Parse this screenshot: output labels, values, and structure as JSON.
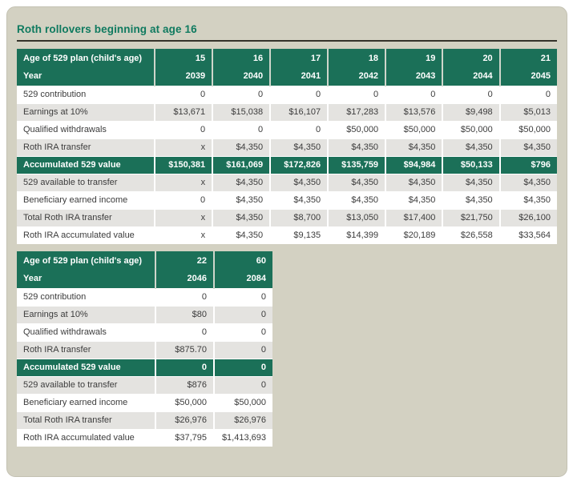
{
  "title": "Roth rollovers beginning at age 16",
  "colors": {
    "card_bg": "#d3d1c2",
    "accent_green": "#1b7058",
    "title_green": "#0f7a5f",
    "row_gray": "#e4e3e0",
    "rule_dark": "#34322a"
  },
  "tables": [
    {
      "id": "table-roth-ages-15-21",
      "header_rows": [
        {
          "label": "Age of 529 plan (child's age)",
          "values": [
            "15",
            "16",
            "17",
            "18",
            "19",
            "20",
            "21"
          ]
        },
        {
          "label": "Year",
          "values": [
            "2039",
            "2040",
            "2041",
            "2042",
            "2043",
            "2044",
            "2045"
          ]
        }
      ],
      "rows": [
        {
          "label": "529 contribution",
          "values": [
            "0",
            "0",
            "0",
            "0",
            "0",
            "0",
            "0"
          ],
          "variant": "white"
        },
        {
          "label": "Earnings at 10%",
          "values": [
            "$13,671",
            "$15,038",
            "$16,107",
            "$17,283",
            "$13,576",
            "$9,498",
            "$5,013"
          ],
          "variant": "gray"
        },
        {
          "label": "Qualified withdrawals",
          "values": [
            "0",
            "0",
            "0",
            "$50,000",
            "$50,000",
            "$50,000",
            "$50,000"
          ],
          "variant": "white"
        },
        {
          "label": "Roth IRA transfer",
          "values": [
            "x",
            "$4,350",
            "$4,350",
            "$4,350",
            "$4,350",
            "$4,350",
            "$4,350"
          ],
          "variant": "gray"
        },
        {
          "label": "Accumulated 529 value",
          "values": [
            "$150,381",
            "$161,069",
            "$172,826",
            "$135,759",
            "$94,984",
            "$50,133",
            "$796"
          ],
          "variant": "green"
        },
        {
          "label": "529 available to transfer",
          "values": [
            "x",
            "$4,350",
            "$4,350",
            "$4,350",
            "$4,350",
            "$4,350",
            "$4,350"
          ],
          "variant": "gray"
        },
        {
          "label": "Beneficiary earned income",
          "values": [
            "0",
            "$4,350",
            "$4,350",
            "$4,350",
            "$4,350",
            "$4,350",
            "$4,350"
          ],
          "variant": "white"
        },
        {
          "label": "Total Roth IRA transfer",
          "values": [
            "x",
            "$4,350",
            "$8,700",
            "$13,050",
            "$17,400",
            "$21,750",
            "$26,100"
          ],
          "variant": "gray"
        },
        {
          "label": "Roth IRA accumulated value",
          "values": [
            "x",
            "$4,350",
            "$9,135",
            "$14,399",
            "$20,189",
            "$26,558",
            "$33,564"
          ],
          "variant": "white"
        }
      ]
    },
    {
      "id": "table-roth-ages-22-60",
      "header_rows": [
        {
          "label": "Age of 529 plan (child's age)",
          "values": [
            "22",
            "60"
          ]
        },
        {
          "label": "Year",
          "values": [
            "2046",
            "2084"
          ]
        }
      ],
      "rows": [
        {
          "label": "529 contribution",
          "values": [
            "0",
            "0"
          ],
          "variant": "white"
        },
        {
          "label": "Earnings at 10%",
          "values": [
            "$80",
            "0"
          ],
          "variant": "gray"
        },
        {
          "label": "Qualified withdrawals",
          "values": [
            "0",
            "0"
          ],
          "variant": "white"
        },
        {
          "label": "Roth IRA transfer",
          "values": [
            "$875.70",
            "0"
          ],
          "variant": "gray"
        },
        {
          "label": "Accumulated 529 value",
          "values": [
            "0",
            "0"
          ],
          "variant": "green"
        },
        {
          "label": "529 available to transfer",
          "values": [
            "$876",
            "0"
          ],
          "variant": "gray"
        },
        {
          "label": "Beneficiary earned income",
          "values": [
            "$50,000",
            "$50,000"
          ],
          "variant": "white"
        },
        {
          "label": "Total Roth IRA transfer",
          "values": [
            "$26,976",
            "$26,976"
          ],
          "variant": "gray"
        },
        {
          "label": "Roth IRA accumulated value",
          "values": [
            "$37,795",
            "$1,413,693"
          ],
          "variant": "white"
        }
      ]
    }
  ]
}
